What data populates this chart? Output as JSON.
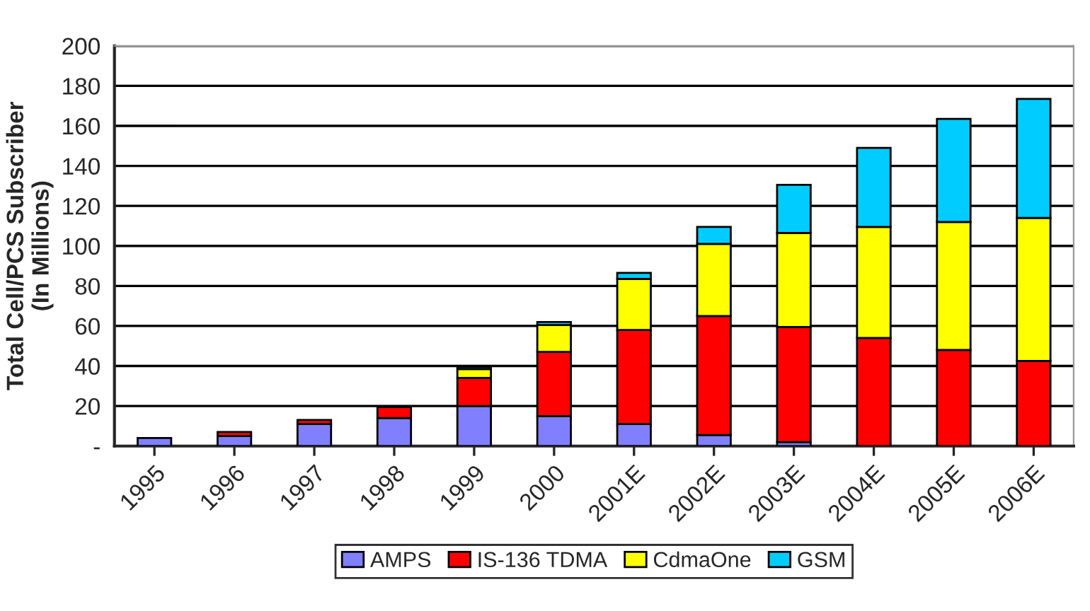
{
  "chart_data": {
    "type": "bar",
    "stacked": true,
    "ylabel": "Total Cell/PCS Subscriber\n(In Millions)",
    "categories": [
      "1995",
      "1996",
      "1997",
      "1998",
      "1999",
      "2000",
      "2001E",
      "2002E",
      "2003E",
      "2004E",
      "2005E",
      "2006E"
    ],
    "series": [
      {
        "name": "AMPS",
        "color": "#8080ff",
        "values": [
          4,
          5,
          11,
          14,
          20,
          15,
          11,
          5.5,
          2,
          null,
          null,
          null
        ]
      },
      {
        "name": "IS-136 TDMA",
        "color": "#ff0000",
        "values": [
          null,
          2,
          2,
          5.5,
          14,
          32,
          47,
          59.5,
          57.5,
          54,
          48,
          42.5
        ]
      },
      {
        "name": "CdmaOne",
        "color": "#ffff00",
        "values": [
          null,
          null,
          null,
          null,
          4.5,
          13.5,
          25.5,
          36,
          47,
          55.5,
          64,
          71.5
        ]
      },
      {
        "name": "GSM",
        "color": "#00ccff",
        "values": [
          null,
          null,
          null,
          null,
          1,
          1.5,
          3,
          8.5,
          24,
          39.5,
          51.5,
          59.5
        ]
      }
    ],
    "ylim": [
      0,
      200
    ],
    "yticks": [
      {
        "value": 0,
        "label": "-"
      },
      20,
      40,
      60,
      80,
      100,
      120,
      140,
      160,
      180,
      200
    ],
    "grid": "y",
    "legend": "bottom"
  }
}
